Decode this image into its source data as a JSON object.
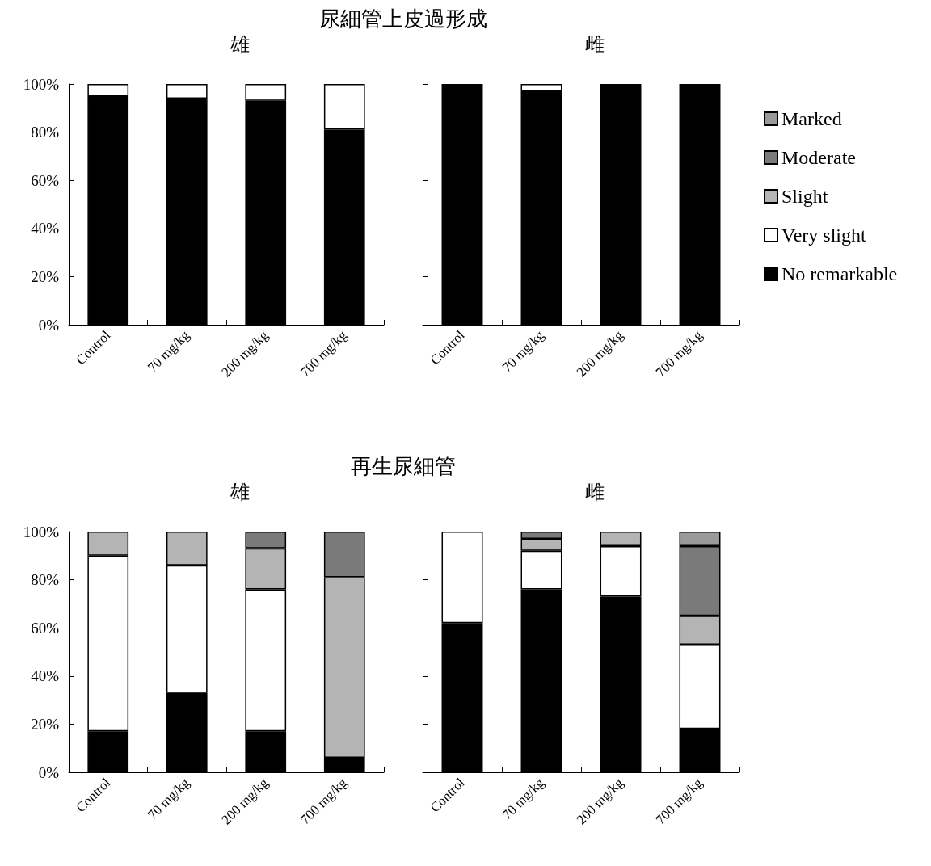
{
  "chart_data": [
    {
      "type": "bar",
      "title": "尿細管上皮過形成",
      "subtitle": "雄",
      "categories": [
        "Control",
        "70 mg/kg",
        "200 mg/kg",
        "700 mg/kg"
      ],
      "stacked": true,
      "legend": false,
      "grid": false,
      "ylim": [
        0,
        100
      ],
      "yticks": [
        {
          "value": 0,
          "label": "0%"
        },
        {
          "value": 20,
          "label": "20%"
        },
        {
          "value": 40,
          "label": "40%"
        },
        {
          "value": 60,
          "label": "60%"
        },
        {
          "value": 80,
          "label": "80%"
        },
        {
          "value": 100,
          "label": "100%"
        }
      ],
      "series": [
        {
          "color": "#000000",
          "values": [
            95,
            94,
            93,
            81
          ]
        },
        {
          "color": "#ffffff",
          "values": [
            5,
            6,
            7,
            19
          ]
        }
      ]
    },
    {
      "type": "bar",
      "subtitle": "雌",
      "categories": [
        "Control",
        "70 mg/kg",
        "200 mg/kg",
        "700 mg/kg"
      ],
      "stacked": true,
      "legend": false,
      "grid": false,
      "tick_labels": "x",
      "ylim": [
        0,
        100
      ],
      "yticks": [
        0,
        20,
        40,
        60,
        80,
        100
      ],
      "series": [
        {
          "color": "#000000",
          "values": [
            100,
            97,
            100,
            100
          ]
        },
        {
          "color": "#ffffff",
          "values": [
            null,
            3,
            null,
            null
          ]
        }
      ]
    },
    {
      "type": "bar",
      "title": "再生尿細管",
      "subtitle": "雄",
      "categories": [
        "Control",
        "70 mg/kg",
        "200 mg/kg",
        "700 mg/kg"
      ],
      "stacked": true,
      "legend": false,
      "grid": false,
      "ylim": [
        0,
        100
      ],
      "yticks": [
        {
          "value": 0,
          "label": "0%"
        },
        {
          "value": 20,
          "label": "20%"
        },
        {
          "value": 40,
          "label": "40%"
        },
        {
          "value": 60,
          "label": "60%"
        },
        {
          "value": 80,
          "label": "80%"
        },
        {
          "value": 100,
          "label": "100%"
        }
      ],
      "series": [
        {
          "color": "#000000",
          "values": [
            17,
            33,
            17,
            6
          ]
        },
        {
          "color": "#ffffff",
          "values": [
            73,
            53,
            59,
            null
          ]
        },
        {
          "color": "#b4b4b4",
          "values": [
            10,
            14,
            17,
            75
          ]
        },
        {
          "color": "#7a7a7a",
          "values": [
            null,
            null,
            7,
            19
          ]
        }
      ]
    },
    {
      "type": "bar",
      "subtitle": "雌",
      "categories": [
        "Control",
        "70 mg/kg",
        "200 mg/kg",
        "700 mg/kg"
      ],
      "stacked": true,
      "legend": "top right",
      "grid": false,
      "tick_labels": "x",
      "ylim": [
        0,
        100
      ],
      "yticks": [
        0,
        20,
        40,
        60,
        80,
        100
      ],
      "series": [
        {
          "name": "No remarkable",
          "color": "#000000",
          "values": [
            62,
            76,
            73,
            18
          ]
        },
        {
          "name": "Very slight",
          "color": "#ffffff",
          "values": [
            38,
            16,
            21,
            35
          ]
        },
        {
          "name": "Slight",
          "color": "#b4b4b4",
          "values": [
            null,
            5,
            6,
            12
          ]
        },
        {
          "name": "Moderate",
          "color": "#7a7a7a",
          "values": [
            null,
            3,
            null,
            29
          ]
        },
        {
          "name": "Marked",
          "color": "#9a9a9a",
          "values": [
            null,
            null,
            null,
            6
          ]
        }
      ]
    }
  ]
}
